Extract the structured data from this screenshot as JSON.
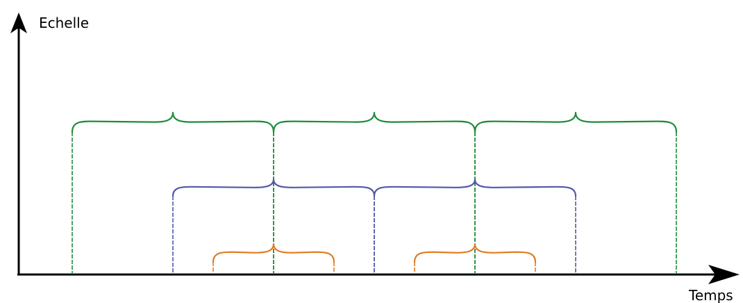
{
  "axes": {
    "y_label": "Echelle",
    "x_label": "Temps"
  },
  "colors": {
    "axis": "#000000",
    "level_large": "#1e8c3a",
    "level_medium": "#5357a8",
    "level_small": "#e07a22"
  },
  "levels": [
    {
      "id": "large",
      "color_key": "level_large",
      "intervals": [
        [
          0,
          1
        ],
        [
          1,
          2
        ],
        [
          2,
          3
        ]
      ]
    },
    {
      "id": "medium",
      "color_key": "level_medium",
      "intervals": [
        [
          0.5,
          1.5
        ],
        [
          1.5,
          2.5
        ]
      ]
    },
    {
      "id": "small",
      "color_key": "level_small",
      "intervals": [
        [
          0.7,
          1.3
        ],
        [
          1.7,
          2.3
        ]
      ]
    }
  ]
}
